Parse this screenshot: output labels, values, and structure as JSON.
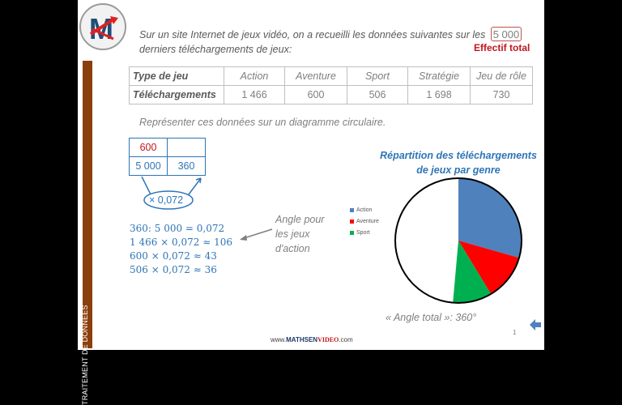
{
  "slide": {
    "logo": {
      "letter": "M"
    },
    "sidebar_label": "TRAITEMENT DE DONNÉES",
    "intro": {
      "line1": "Sur un site Internet de jeux vidéo, on a recueilli les données suivantes sur les",
      "line2": "derniers téléchargements  de jeux:",
      "highlight_value": "5 000",
      "highlight_label": "Effectif total"
    },
    "table": {
      "header_label": "Type de jeu",
      "row_label": "Téléchargements",
      "columns": [
        "Action",
        "Aventure",
        "Sport",
        "Stratégie",
        "Jeu de rôle"
      ],
      "values": [
        "1 466",
        "600",
        "506",
        "1 698",
        "730"
      ]
    },
    "instruction": "Représenter ces données sur un diagramme circulaire.",
    "proportion_table": {
      "top_left": "600",
      "top_right": "",
      "bottom_left": "5 000",
      "bottom_right": "360",
      "multiplier": "× 0,072"
    },
    "calculations": [
      "360: 5 000 = 0,072",
      "1 466 × 0,072 ≈ 106",
      "600 × 0,072 ≈ 43",
      "506 × 0,072 ≈ 36"
    ],
    "note": {
      "line1": "Angle pour",
      "line2": "les jeux",
      "line3": "d'action"
    },
    "chart": {
      "title_line1": "Répartition des téléchargements",
      "title_line2": "de jeux par genre"
    },
    "angle_total": "« Angle total »: 360°",
    "page_number": "1",
    "footer": {
      "prefix": "www.",
      "brand1": "MATHSEN",
      "brand2": "VIDEO",
      "suffix": ".com"
    }
  },
  "chart_data": {
    "type": "pie",
    "title": "Répartition des téléchargements de jeux par genre",
    "categories": [
      "Action",
      "Aventure",
      "Sport"
    ],
    "values": [
      106,
      43,
      36
    ],
    "unit": "degrees",
    "total_angle": 360,
    "colors": {
      "Action": "#4f81bd",
      "Aventure": "#ff0000",
      "Sport": "#00b050"
    },
    "legend_position": "left"
  }
}
